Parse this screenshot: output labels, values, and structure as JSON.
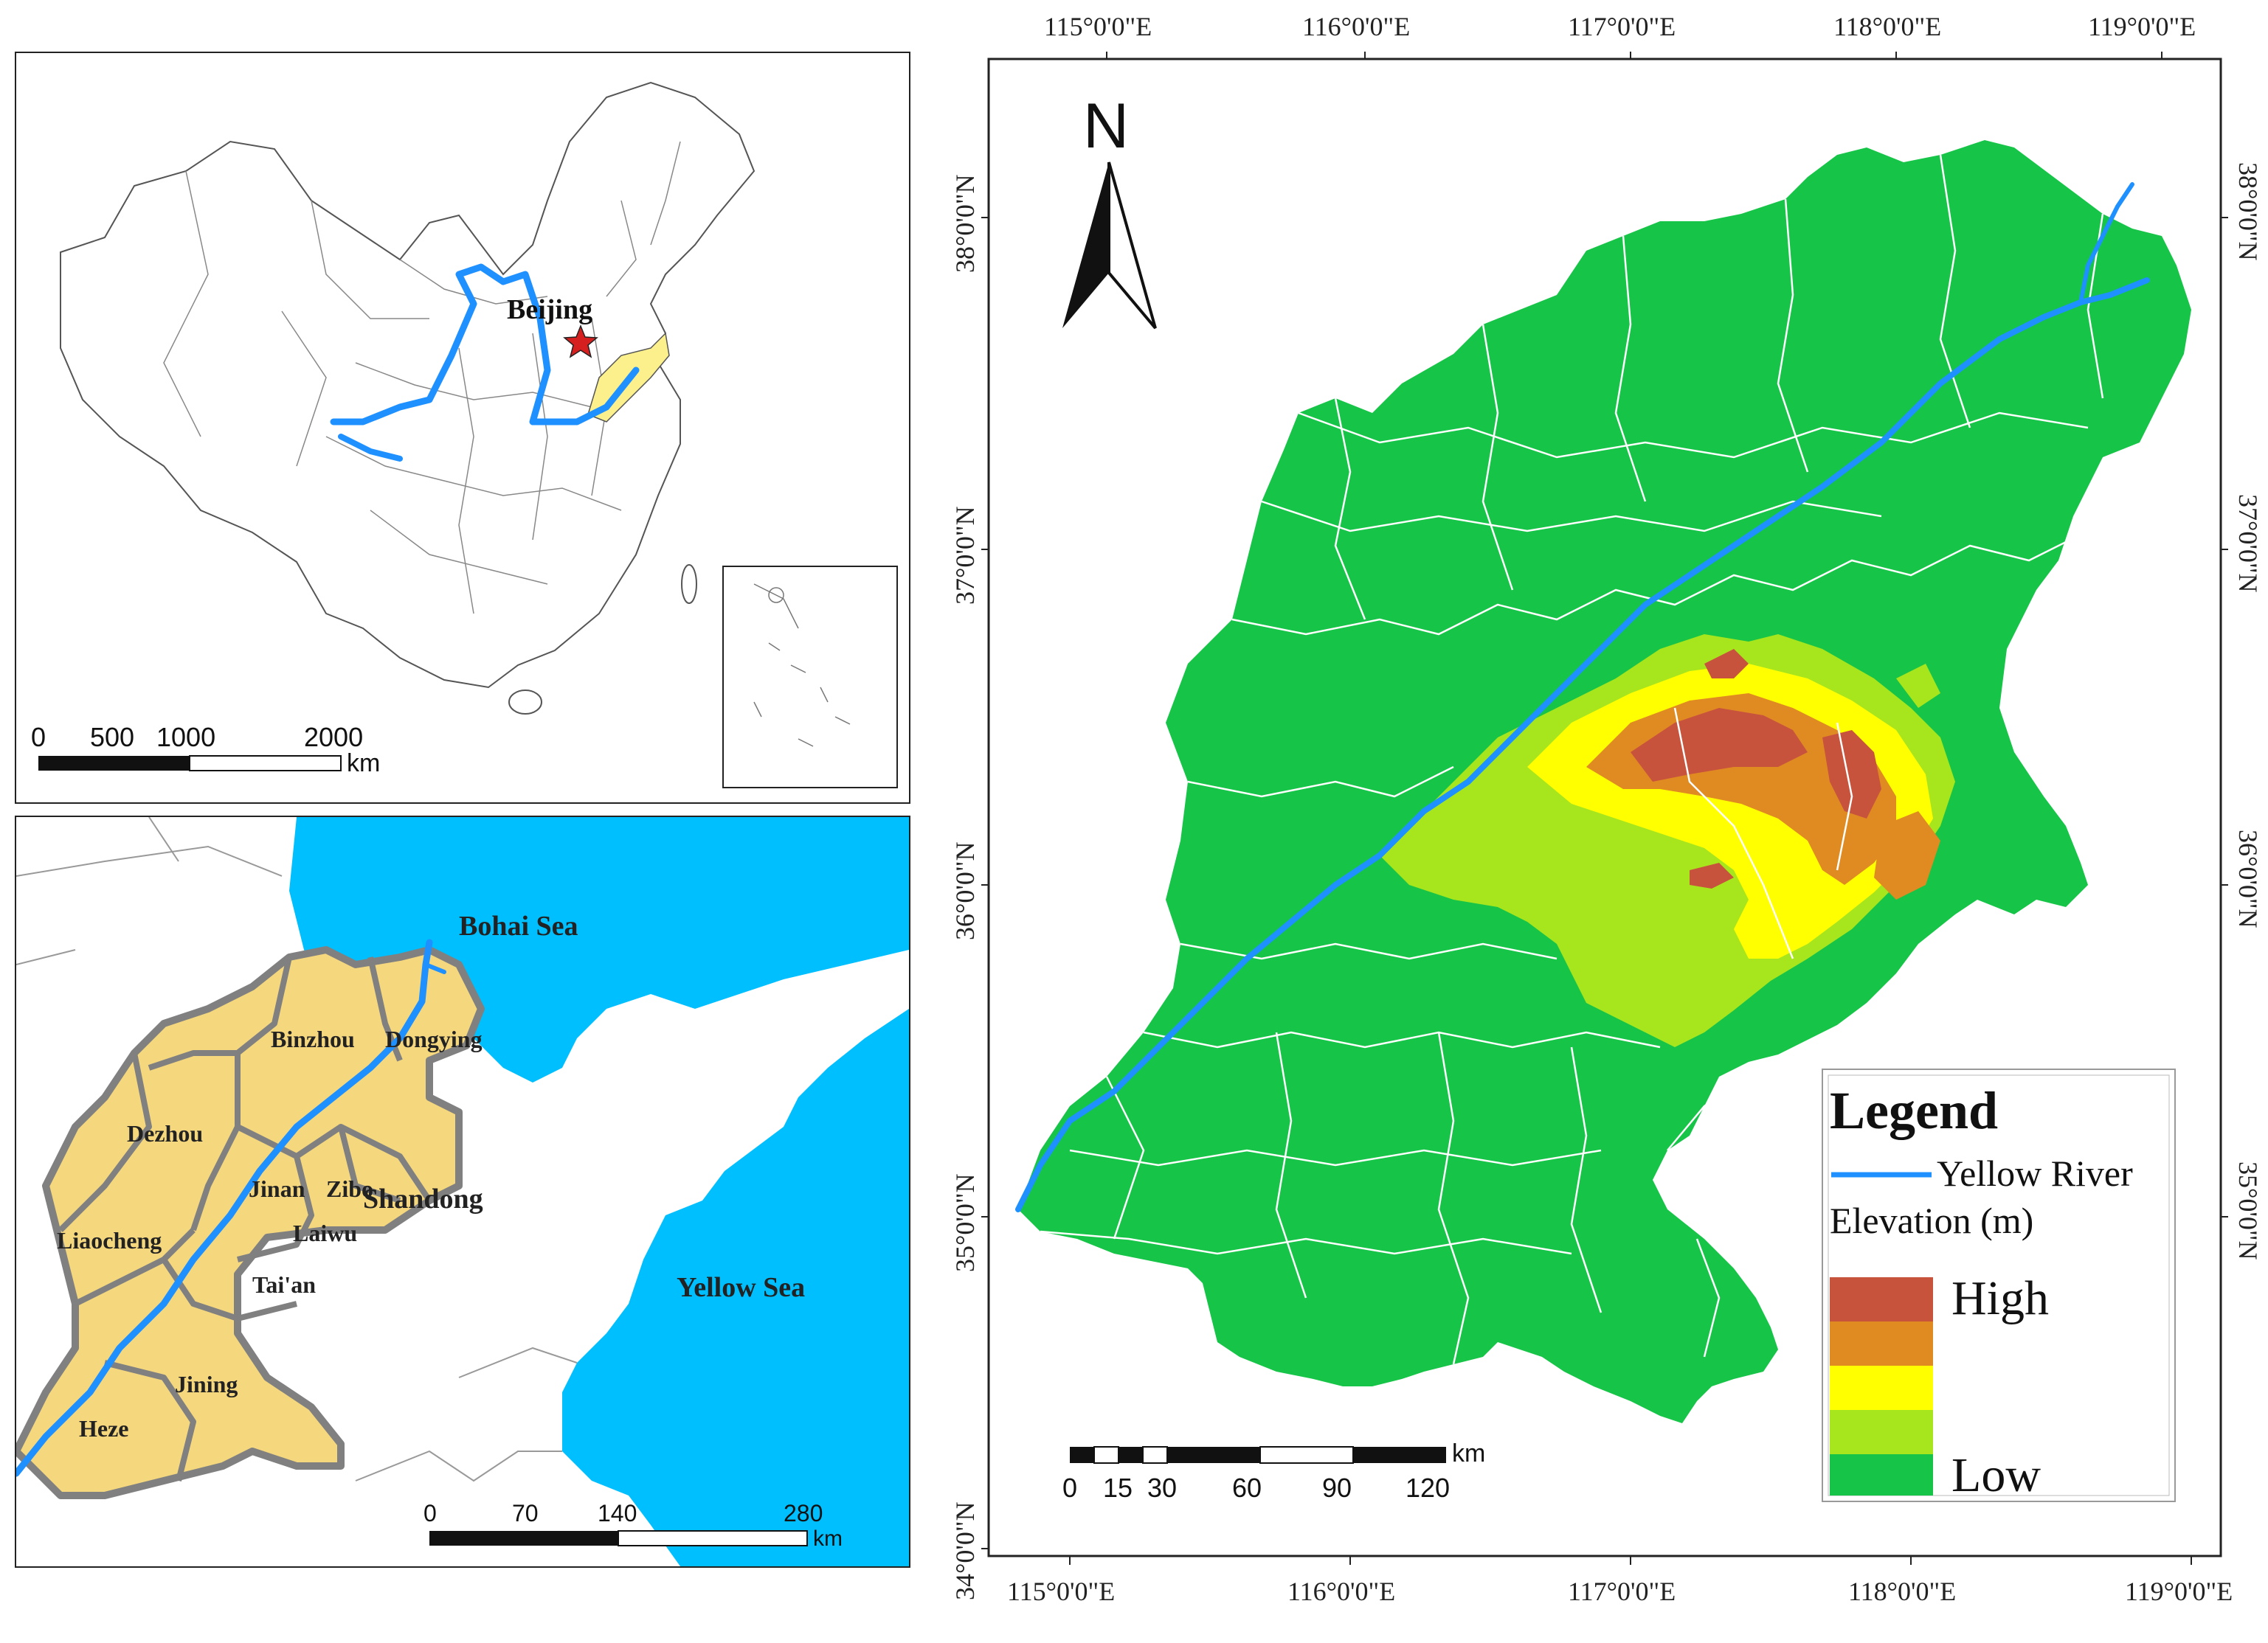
{
  "china_map": {
    "capital_label": "Beijing",
    "scale_bar": {
      "ticks": [
        "0",
        "500",
        "1000",
        "2000"
      ],
      "unit": "km"
    },
    "colors": {
      "river": "#1e90ff",
      "highlight": "#fbf08c",
      "capital": "#d62020"
    }
  },
  "shandong_map": {
    "sea_labels": {
      "bohai": "Bohai Sea",
      "yellow": "Yellow Sea"
    },
    "province_label": "Shandong",
    "cities": [
      "Binzhou",
      "Dongying",
      "Dezhou",
      "Jinan",
      "Zibo",
      "Liaocheng",
      "Laiwu",
      "Tai'an",
      "Jining",
      "Heze"
    ],
    "scale_bar": {
      "ticks": [
        "0",
        "70",
        "140",
        "280"
      ],
      "unit": "km"
    },
    "colors": {
      "sea": "#00bfff",
      "province": "#f5d77e",
      "border": "#808080"
    }
  },
  "elevation_map": {
    "north_arrow": "N",
    "longitude_labels": [
      "115°0'0\"E",
      "116°0'0\"E",
      "117°0'0\"E",
      "118°0'0\"E",
      "119°0'0\"E"
    ],
    "latitude_labels": [
      "38°0'0\"N",
      "37°0'0\"N",
      "36°0'0\"N",
      "35°0'0\"N",
      "34°0'0\"N"
    ],
    "scale_bar": {
      "ticks": [
        "0",
        "15",
        "30",
        "60",
        "90",
        "120"
      ],
      "unit": "km"
    },
    "legend": {
      "title": "Legend",
      "river_label": "Yellow River",
      "elevation_title": "Elevation (m)",
      "high_label": "High",
      "low_label": "Low",
      "ramp_colors": [
        "#c8533c",
        "#e08a22",
        "#ffff00",
        "#a7e61c",
        "#16c447"
      ]
    },
    "colors": {
      "land": "#16c447",
      "river": "#1e90ff"
    }
  }
}
